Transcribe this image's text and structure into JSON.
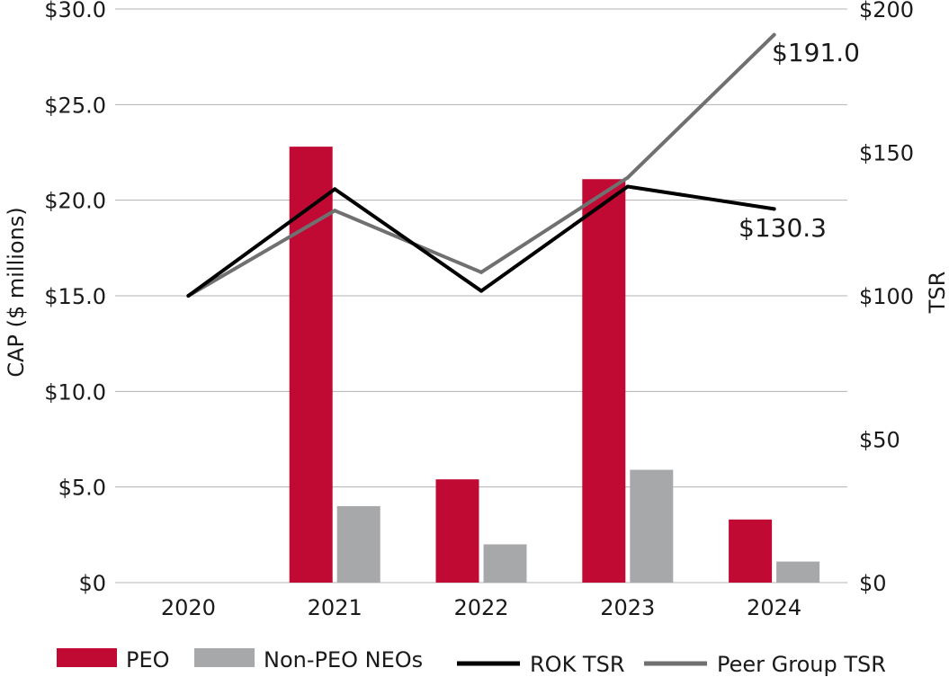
{
  "chart_data": {
    "type": "bar",
    "categories": [
      "2020",
      "2021",
      "2022",
      "2023",
      "2024"
    ],
    "bar_series": [
      {
        "name": "PEO",
        "color": "#c10a33",
        "values": [
          null,
          22.8,
          5.4,
          21.1,
          3.3
        ]
      },
      {
        "name": "Non-PEO NEOs",
        "color": "#a7a8aa",
        "values": [
          null,
          4.0,
          2.0,
          5.9,
          1.1
        ]
      }
    ],
    "line_series": [
      {
        "name": "ROK TSR",
        "color": "#000000",
        "values": [
          100,
          137.2,
          101.7,
          138.1,
          130.3
        ]
      },
      {
        "name": "Peer Group TSR",
        "color": "#707070",
        "values": [
          100,
          129.7,
          108.2,
          141.2,
          191.0
        ]
      }
    ],
    "ylabel": "CAP ($ millions)",
    "ylabel_right": "TSR",
    "ylim": [
      0,
      30
    ],
    "ylim_right": [
      0,
      200
    ],
    "yticks": [
      "$0",
      "$5.0",
      "$10.0",
      "$15.0",
      "$20.0",
      "$25.0",
      "$30.0"
    ],
    "yticks_right": [
      "$0",
      "$50",
      "$100",
      "$150",
      "$200"
    ],
    "annotations": [
      {
        "series": "Peer Group TSR",
        "text": "$191.0"
      },
      {
        "series": "ROK TSR",
        "text": "$130.3"
      }
    ],
    "grid": true,
    "legend_position": "bottom"
  }
}
